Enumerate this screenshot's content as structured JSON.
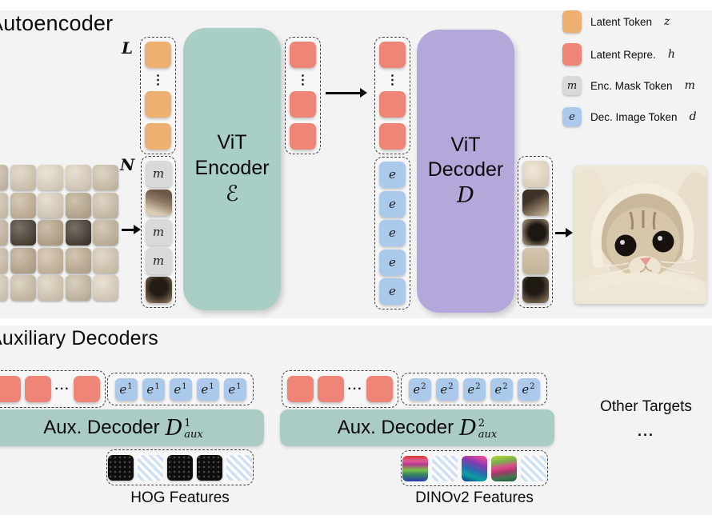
{
  "palette": {
    "background": "#f3f3f4",
    "teal_block": "#a8cec6",
    "purple_block": "#b4a8db",
    "orange_token": "#eeb070",
    "salmon_token": "#ee8577",
    "gray_token": "#d9d9d9",
    "blue_token": "#abc9ea",
    "aux_bar": "#abccc5",
    "stripe_blue": "#cfe0f3"
  },
  "glyphs": {
    "vdots": "⋮",
    "hdots": "···"
  },
  "autoencoder": {
    "title": "Autoencoder",
    "l_label": "L",
    "n_label": "N",
    "mask_glyph": "m",
    "encoder": {
      "line1": "ViT",
      "line2": "Encoder",
      "symbol": "ℰ"
    },
    "decoder": {
      "line1": "ViT",
      "line2": "Decoder",
      "symbol": "D"
    },
    "l_stack": [
      {
        "t": "orange"
      },
      {
        "t": "vdots"
      },
      {
        "t": "orange"
      },
      {
        "t": "orange"
      }
    ],
    "n_stack": [
      {
        "t": "mask"
      },
      {
        "t": "img",
        "v": "p1"
      },
      {
        "t": "mask"
      },
      {
        "t": "mask"
      },
      {
        "t": "img",
        "v": "p2"
      }
    ],
    "enc_out_stack": [
      {
        "t": "salmon"
      },
      {
        "t": "vdots"
      },
      {
        "t": "salmon"
      },
      {
        "t": "salmon"
      }
    ],
    "dec_in_stack": [
      {
        "t": "salmon"
      },
      {
        "t": "vdots"
      },
      {
        "t": "salmon"
      },
      {
        "t": "salmon"
      }
    ],
    "dec_img_stack": [
      {
        "t": "blue",
        "g": "e"
      },
      {
        "t": "blue",
        "g": "e"
      },
      {
        "t": "blue",
        "g": "e"
      },
      {
        "t": "blue",
        "g": "e"
      },
      {
        "t": "blue",
        "g": "e"
      }
    ],
    "out_stack": [
      {
        "t": "img",
        "v": "o1"
      },
      {
        "t": "img",
        "v": "o2"
      },
      {
        "t": "img",
        "v": "o3"
      },
      {
        "t": "img",
        "v": "o4"
      },
      {
        "t": "img",
        "v": "o5"
      }
    ],
    "masked_grid": {
      "rows": 5,
      "cols": 5,
      "colors": [
        [
          "#cfc2ab",
          "#d9cdb7",
          "#e4dac6",
          "#dfd4bf",
          "#d2c5ae"
        ],
        [
          "#d7cab3",
          "#c6b499",
          "#ded3bd",
          "#bcab90",
          "#d1c4ad"
        ],
        [
          "#ccbfa6",
          "#453b2f",
          "#b8a589",
          "#40382c",
          "#c5b79d"
        ],
        [
          "#d3c6af",
          "#bba98e",
          "#ccba9f",
          "#c1af94",
          "#d7cbb4"
        ],
        [
          "#ddd2bc",
          "#d0c3ab",
          "#d9cdb6",
          "#cabda5",
          "#e1d6c1"
        ]
      ]
    }
  },
  "legend": {
    "items": [
      {
        "swatch": "orange",
        "label": "Latent Token",
        "math": "z"
      },
      {
        "swatch": "salmon",
        "label": "Latent Repre.",
        "math": "h"
      },
      {
        "swatch": "gray",
        "glyph": "m",
        "label": "Enc. Mask Token",
        "math": "m"
      },
      {
        "swatch": "blue",
        "glyph": "e",
        "label": "Dec. Image Token",
        "math": "d"
      }
    ]
  },
  "aux": {
    "title": "Auxiliary Decoders",
    "decoders": [
      {
        "prefix": "Aux. Decoder",
        "symbol": "D",
        "sup": "1",
        "sub": "aux",
        "latents": [
          {
            "t": "salmon"
          },
          {
            "t": "salmon"
          },
          {
            "t": "hdots"
          },
          {
            "t": "salmon"
          }
        ],
        "tokens": [
          {
            "t": "blue",
            "g": "e",
            "sup": "1"
          },
          {
            "t": "blue",
            "g": "e",
            "sup": "1"
          },
          {
            "t": "blue",
            "g": "e",
            "sup": "1"
          },
          {
            "t": "blue",
            "g": "e",
            "sup": "1"
          },
          {
            "t": "blue",
            "g": "e",
            "sup": "1"
          }
        ],
        "features": [
          {
            "t": "hog"
          },
          {
            "t": "stripe"
          },
          {
            "t": "hog"
          },
          {
            "t": "hog"
          },
          {
            "t": "stripe"
          }
        ],
        "target_label": "HOG Features"
      },
      {
        "prefix": "Aux. Decoder",
        "symbol": "D",
        "sup": "2",
        "sub": "aux",
        "latents": [
          {
            "t": "salmon"
          },
          {
            "t": "salmon"
          },
          {
            "t": "hdots"
          },
          {
            "t": "salmon"
          }
        ],
        "tokens": [
          {
            "t": "blue",
            "g": "e",
            "sup": "2"
          },
          {
            "t": "blue",
            "g": "e",
            "sup": "2"
          },
          {
            "t": "blue",
            "g": "e",
            "sup": "2"
          },
          {
            "t": "blue",
            "g": "e",
            "sup": "2"
          },
          {
            "t": "blue",
            "g": "e",
            "sup": "2"
          }
        ],
        "features": [
          {
            "t": "dino-a"
          },
          {
            "t": "stripe"
          },
          {
            "t": "dino-b"
          },
          {
            "t": "dino-c"
          },
          {
            "t": "stripe"
          }
        ],
        "target_label": "DINOv2 Features"
      }
    ],
    "other_label": "Other Targets",
    "other_dots": "..."
  }
}
